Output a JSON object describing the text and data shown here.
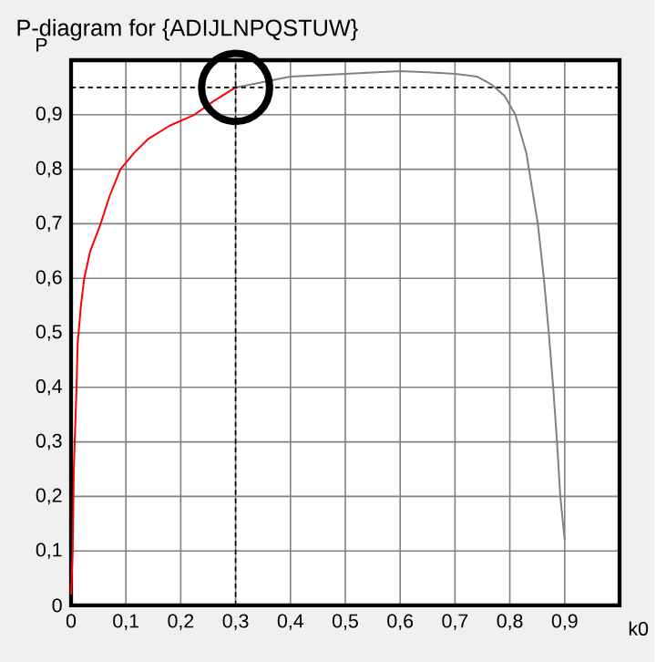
{
  "chart_data": {
    "type": "line",
    "title": "P-diagram for {ADIJLNPQSTUW}",
    "xlabel": "k0",
    "ylabel": "P",
    "xlim": [
      0,
      1.0
    ],
    "ylim": [
      0,
      1.0
    ],
    "xticks": [
      0,
      {
        "value": 0.1,
        "label": "0,1"
      },
      {
        "value": 0.2,
        "label": "0,2"
      },
      {
        "value": 0.3,
        "label": "0,3"
      },
      {
        "value": 0.4,
        "label": "0,4"
      },
      {
        "value": 0.5,
        "label": "0,5"
      },
      {
        "value": 0.6,
        "label": "0,6"
      },
      {
        "value": 0.7,
        "label": "0,7"
      },
      {
        "value": 0.8,
        "label": "0,8"
      },
      {
        "value": 0.9,
        "label": "0,9"
      }
    ],
    "yticks": [
      0,
      {
        "value": 0.1,
        "label": "0,1"
      },
      {
        "value": 0.2,
        "label": "0,2"
      },
      {
        "value": 0.3,
        "label": "0,3"
      },
      {
        "value": 0.4,
        "label": "0,4"
      },
      {
        "value": 0.5,
        "label": "0,5"
      },
      {
        "value": 0.6,
        "label": "0,6"
      },
      {
        "value": 0.7,
        "label": "0,7"
      },
      {
        "value": 0.8,
        "label": "0,8"
      },
      {
        "value": 0.9,
        "label": "0,9"
      }
    ],
    "grid": true,
    "series": [
      {
        "color": "#ff0000",
        "x": [
          0,
          0.003,
          0.005,
          0.01,
          0.012,
          0.018,
          0.024,
          0.035,
          0.054,
          0.07,
          0.09,
          0.115,
          0.14,
          0.18,
          0.225,
          0.26,
          0.3
        ],
        "values": [
          0.02,
          0.1,
          0.25,
          0.4,
          0.48,
          0.55,
          0.6,
          0.65,
          0.7,
          0.75,
          0.8,
          0.83,
          0.855,
          0.88,
          0.9,
          0.925,
          0.95
        ]
      },
      {
        "color": "#808080",
        "x": [
          0.3,
          0.35,
          0.4,
          0.5,
          0.6,
          0.65,
          0.7,
          0.74,
          0.767,
          0.79,
          0.81,
          0.83,
          0.851,
          0.862,
          0.871,
          0.879,
          0.886,
          0.892,
          0.9
        ],
        "values": [
          0.95,
          0.96,
          0.97,
          0.975,
          0.98,
          0.978,
          0.975,
          0.97,
          0.955,
          0.935,
          0.9,
          0.83,
          0.7,
          0.6,
          0.5,
          0.4,
          0.3,
          0.2,
          0.12
        ]
      }
    ],
    "ref_lines": [
      {
        "axis": "x",
        "value": 0.3,
        "color": "#000000",
        "line_style": "dashed"
      },
      {
        "axis": "y",
        "value": 0.95,
        "color": "#000000",
        "line_style": "dashed"
      }
    ]
  }
}
